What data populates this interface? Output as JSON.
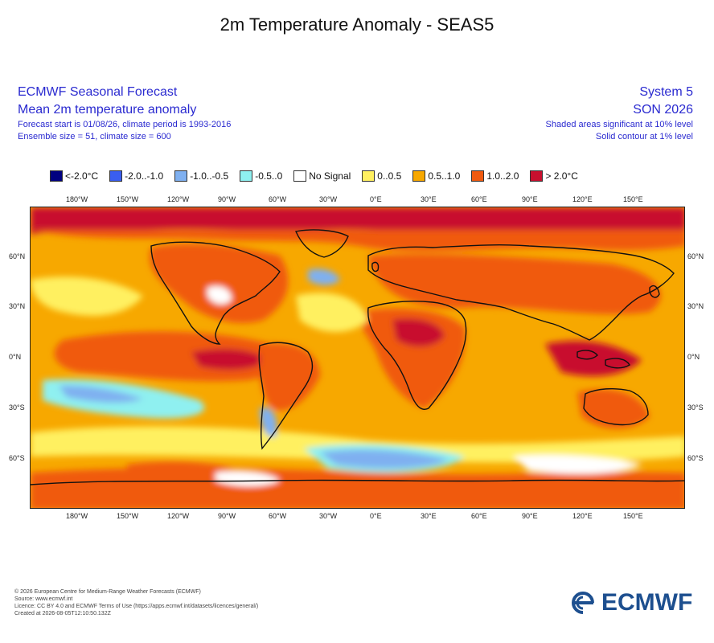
{
  "title": "2m Temperature Anomaly - SEAS5",
  "header_left": {
    "line1": "ECMWF Seasonal Forecast",
    "line2": "Mean 2m temperature anomaly",
    "line3": "Forecast start is 01/08/26, climate period is 1993-2016",
    "line4": "Ensemble size = 51, climate size = 600"
  },
  "header_right": {
    "line1": "System 5",
    "line2": "SON 2026",
    "line3": "Shaded areas significant at 10% level",
    "line4": "Solid contour at 1% level"
  },
  "legend": [
    {
      "label": "<-2.0°C",
      "color": "#000080"
    },
    {
      "label": "-2.0..-1.0",
      "color": "#3a5ef0"
    },
    {
      "label": "-1.0..-0.5",
      "color": "#7fb0f0"
    },
    {
      "label": "-0.5..0",
      "color": "#8ff0f0"
    },
    {
      "label": "No Signal",
      "color": "#ffffff"
    },
    {
      "label": "0..0.5",
      "color": "#fff060"
    },
    {
      "label": "0.5..1.0",
      "color": "#f7a800"
    },
    {
      "label": "1.0..2.0",
      "color": "#f05a10"
    },
    {
      "label": "> 2.0°C",
      "color": "#c8102e"
    }
  ],
  "lon_labels": [
    "180°W",
    "150°W",
    "120°W",
    "90°W",
    "60°W",
    "30°W",
    "0°E",
    "30°E",
    "60°E",
    "90°E",
    "120°E",
    "150°E"
  ],
  "lat_labels": [
    "60°N",
    "30°N",
    "0°N",
    "30°S",
    "60°S"
  ],
  "footer": {
    "line1": "© 2026 European Centre for Medium-Range Weather Forecasts (ECMWF)",
    "line2": "Source: www.ecmwf.int",
    "line3": "Licence: CC BY 4.0 and ECMWF Terms of Use (https://apps.ecmwf.int/datasets/licences/general/)",
    "line4": "Created at 2026-08-05T12:10:50.132Z"
  },
  "logo": {
    "text": "ECMWF",
    "icon": "ecmwf-swirl-icon"
  }
}
